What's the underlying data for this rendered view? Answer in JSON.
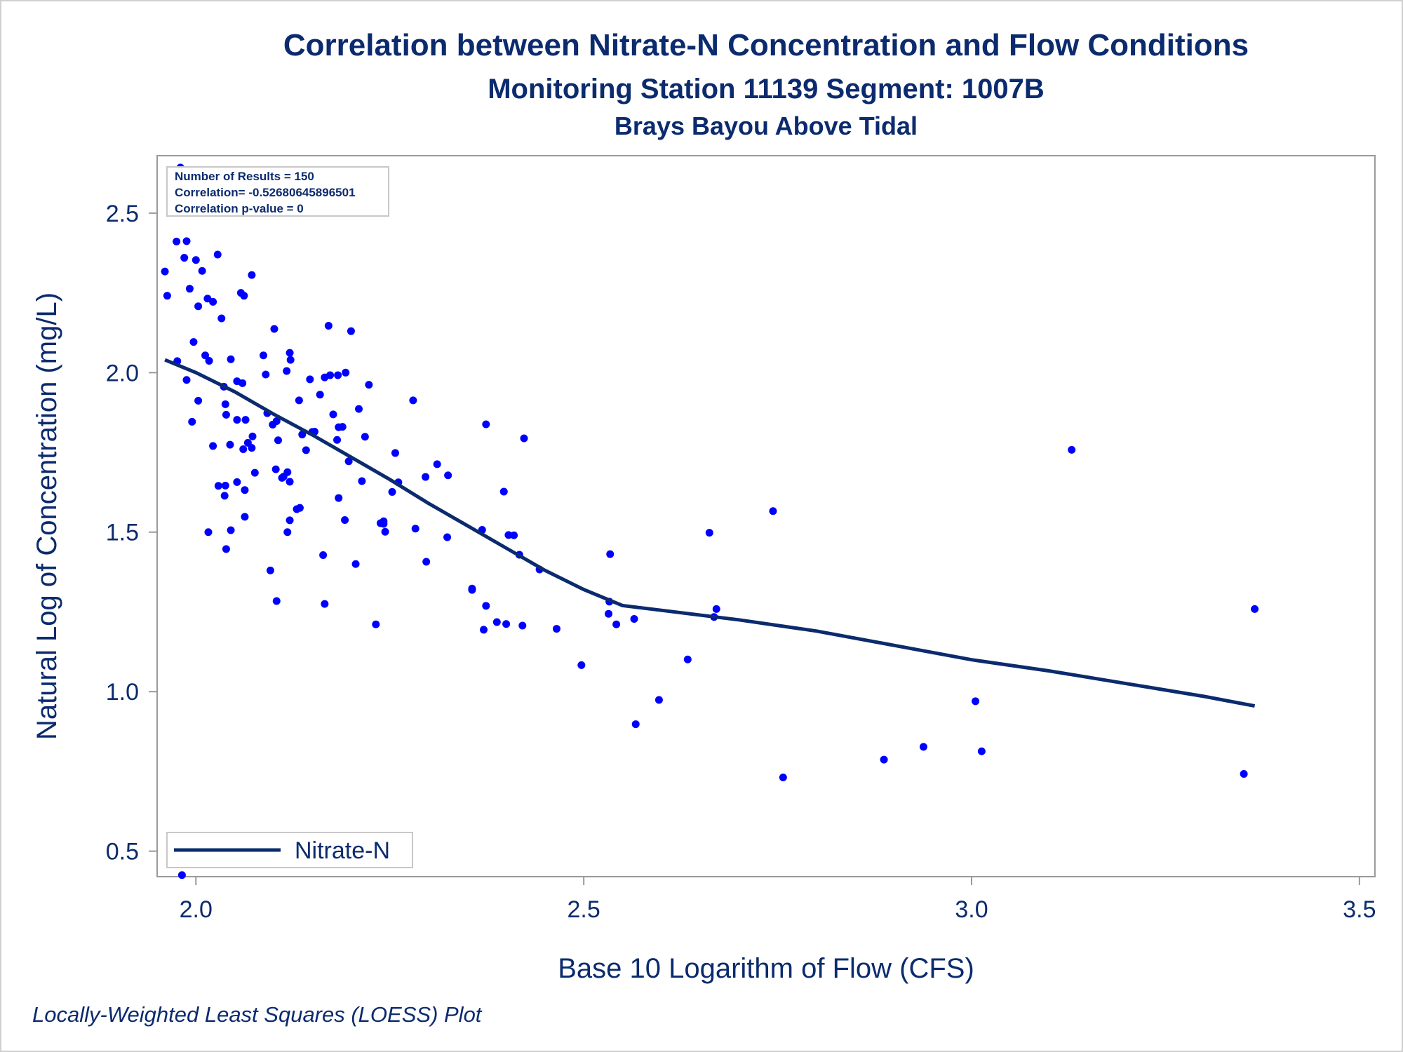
{
  "chart_data": {
    "type": "scatter",
    "title": "Correlation between Nitrate-N Concentration and Flow Conditions",
    "subtitle": "Monitoring Station 11139 Segment: 1007B",
    "subtitle2": "Brays Bayou Above Tidal",
    "footnote": "Locally-Weighted Least Squares (LOESS) Plot",
    "xlabel": "Base 10 Logarithm of Flow (CFS)",
    "ylabel": "Natural Log of Concentration (mg/L)",
    "xlim": [
      1.95,
      3.52
    ],
    "ylim": [
      0.42,
      2.68
    ],
    "x_ticks": [
      "2.0",
      "2.5",
      "3.0",
      "3.5"
    ],
    "y_ticks": [
      "0.5",
      "1.0",
      "1.5",
      "2.0",
      "2.5"
    ],
    "grid": false,
    "stats": {
      "n_results": "Number of Results = 150",
      "correlation": "Correlation= -0.52680645896501",
      "p_value": "Correlation p-value = 0"
    },
    "legend": {
      "placement": "bottom-left",
      "entries": [
        "Nitrate-N"
      ]
    },
    "colors": {
      "points": "#0000ff",
      "fit_line": "#0b2b6e",
      "text": "#0b2b6e"
    },
    "scatter_points": [
      [
        1.96,
        2.317
      ],
      [
        1.975,
        2.411
      ],
      [
        1.988,
        2.412
      ],
      [
        1.963,
        2.241
      ],
      [
        1.985,
        2.36
      ],
      [
        2.0,
        2.353
      ],
      [
        2.008,
        2.319
      ],
      [
        1.992,
        2.263
      ],
      [
        2.015,
        2.232
      ],
      [
        2.003,
        2.208
      ],
      [
        1.98,
        2.643
      ],
      [
        2.002,
        2.503
      ],
      [
        2.022,
        2.222
      ],
      [
        2.033,
        2.17
      ],
      [
        2.028,
        2.37
      ],
      [
        2.058,
        2.25
      ],
      [
        2.062,
        2.241
      ],
      [
        2.072,
        2.306
      ],
      [
        2.087,
        2.054
      ],
      [
        2.092,
        1.873
      ],
      [
        1.997,
        2.096
      ],
      [
        2.012,
        2.054
      ],
      [
        2.017,
        2.037
      ],
      [
        1.976,
        2.036
      ],
      [
        1.988,
        1.977
      ],
      [
        2.003,
        1.912
      ],
      [
        1.995,
        1.846
      ],
      [
        2.016,
        1.5
      ],
      [
        2.022,
        1.77
      ],
      [
        2.036,
        1.956
      ],
      [
        2.038,
        1.901
      ],
      [
        2.039,
        1.868
      ],
      [
        2.045,
        2.042
      ],
      [
        2.053,
        1.973
      ],
      [
        2.06,
        1.967
      ],
      [
        2.064,
        1.852
      ],
      [
        2.053,
        1.852
      ],
      [
        2.061,
        1.76
      ],
      [
        2.067,
        1.78
      ],
      [
        2.073,
        1.8
      ],
      [
        2.072,
        1.764
      ],
      [
        2.076,
        1.686
      ],
      [
        2.044,
        1.774
      ],
      [
        2.053,
        1.657
      ],
      [
        2.063,
        1.632
      ],
      [
        2.037,
        1.614
      ],
      [
        2.038,
        1.646
      ],
      [
        2.045,
        1.506
      ],
      [
        2.039,
        1.447
      ],
      [
        2.063,
        1.548
      ],
      [
        2.09,
        1.994
      ],
      [
        2.101,
        2.137
      ],
      [
        2.104,
        1.848
      ],
      [
        2.106,
        1.788
      ],
      [
        2.103,
        1.697
      ],
      [
        2.111,
        1.67
      ],
      [
        2.118,
        1.688
      ],
      [
        2.121,
        1.658
      ],
      [
        2.113,
        1.674
      ],
      [
        2.096,
        1.38
      ],
      [
        2.104,
        1.284
      ],
      [
        2.118,
        1.5
      ],
      [
        2.121,
        1.537
      ],
      [
        2.117,
        2.005
      ],
      [
        2.121,
        2.062
      ],
      [
        2.122,
        2.04
      ],
      [
        2.133,
        1.913
      ],
      [
        2.137,
        1.806
      ],
      [
        2.142,
        1.757
      ],
      [
        2.147,
        1.979
      ],
      [
        2.153,
        1.815
      ],
      [
        2.16,
        1.931
      ],
      [
        2.166,
        1.985
      ],
      [
        2.173,
        1.992
      ],
      [
        2.183,
        1.992
      ],
      [
        2.193,
        2.0
      ],
      [
        2.171,
        2.147
      ],
      [
        2.2,
        2.13
      ],
      [
        2.177,
        1.869
      ],
      [
        2.182,
        1.789
      ],
      [
        2.184,
        1.607
      ],
      [
        2.192,
        1.538
      ],
      [
        2.189,
        1.83
      ],
      [
        2.184,
        1.829
      ],
      [
        2.197,
        1.722
      ],
      [
        2.21,
        1.886
      ],
      [
        2.218,
        1.799
      ],
      [
        2.223,
        1.962
      ],
      [
        2.214,
        1.66
      ],
      [
        2.206,
        1.4
      ],
      [
        2.164,
        1.428
      ],
      [
        2.166,
        1.275
      ],
      [
        2.134,
        1.576
      ],
      [
        2.13,
        1.572
      ],
      [
        2.232,
        1.211
      ],
      [
        2.238,
        1.528
      ],
      [
        2.242,
        1.534
      ],
      [
        2.244,
        1.501
      ],
      [
        2.253,
        1.626
      ],
      [
        2.257,
        1.748
      ],
      [
        2.261,
        1.656
      ],
      [
        2.28,
        1.913
      ],
      [
        2.283,
        1.511
      ],
      [
        2.296,
        1.673
      ],
      [
        2.297,
        1.407
      ],
      [
        2.311,
        1.713
      ],
      [
        2.325,
        1.678
      ],
      [
        2.324,
        1.484
      ],
      [
        2.356,
        1.319
      ],
      [
        2.369,
        1.507
      ],
      [
        2.374,
        1.838
      ],
      [
        2.374,
        1.269
      ],
      [
        2.371,
        1.194
      ],
      [
        2.388,
        1.218
      ],
      [
        2.397,
        1.627
      ],
      [
        2.403,
        1.491
      ],
      [
        2.4,
        1.212
      ],
      [
        2.417,
        1.429
      ],
      [
        2.423,
        1.794
      ],
      [
        2.421,
        1.207
      ],
      [
        2.443,
        1.383
      ],
      [
        2.465,
        1.197
      ],
      [
        2.497,
        1.083
      ],
      [
        2.534,
        1.431
      ],
      [
        2.533,
        1.282
      ],
      [
        2.532,
        1.244
      ],
      [
        2.542,
        1.211
      ],
      [
        2.565,
        1.228
      ],
      [
        2.567,
        0.898
      ],
      [
        2.597,
        0.974
      ],
      [
        2.634,
        1.101
      ],
      [
        2.662,
        1.498
      ],
      [
        2.668,
        1.234
      ],
      [
        2.671,
        1.259
      ],
      [
        2.744,
        1.566
      ],
      [
        2.757,
        0.731
      ],
      [
        2.887,
        0.787
      ],
      [
        2.938,
        0.827
      ],
      [
        3.005,
        0.97
      ],
      [
        3.013,
        0.813
      ],
      [
        3.129,
        1.758
      ],
      [
        3.351,
        0.742
      ],
      [
        3.365,
        1.259
      ],
      [
        1.982,
        0.425
      ],
      [
        2.029,
        1.645
      ],
      [
        2.099,
        1.837
      ],
      [
        2.15,
        1.814
      ],
      [
        2.242,
        1.526
      ],
      [
        2.356,
        1.323
      ],
      [
        2.41,
        1.49
      ]
    ],
    "loess_curve": [
      [
        1.96,
        2.04
      ],
      [
        2.0,
        2.0
      ],
      [
        2.05,
        1.94
      ],
      [
        2.1,
        1.87
      ],
      [
        2.15,
        1.805
      ],
      [
        2.2,
        1.735
      ],
      [
        2.25,
        1.665
      ],
      [
        2.3,
        1.59
      ],
      [
        2.35,
        1.52
      ],
      [
        2.4,
        1.45
      ],
      [
        2.45,
        1.38
      ],
      [
        2.5,
        1.32
      ],
      [
        2.55,
        1.27
      ],
      [
        2.6,
        1.255
      ],
      [
        2.7,
        1.225
      ],
      [
        2.8,
        1.19
      ],
      [
        2.9,
        1.145
      ],
      [
        3.0,
        1.1
      ],
      [
        3.1,
        1.065
      ],
      [
        3.2,
        1.025
      ],
      [
        3.3,
        0.985
      ],
      [
        3.365,
        0.955
      ]
    ]
  }
}
